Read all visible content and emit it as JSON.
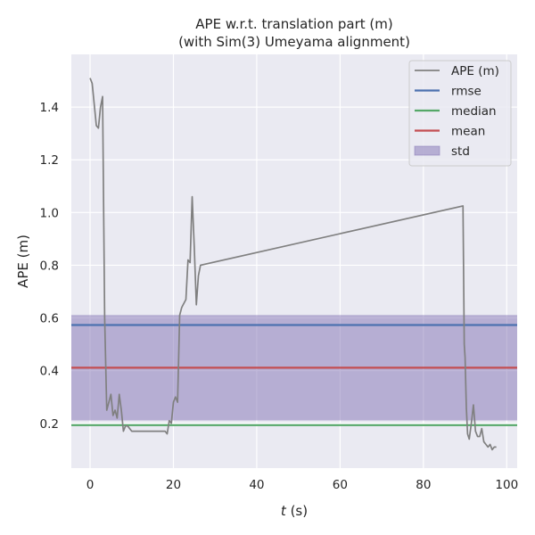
{
  "chart_data": {
    "type": "line",
    "title": "APE w.r.t. translation part (m)",
    "subtitle": "(with Sim(3) Umeyama alignment)",
    "xlabel_italic": "t",
    "xlabel_rest": " (s)",
    "ylabel": "APE (m)",
    "xlim": [
      -4.5,
      102.5
    ],
    "ylim": [
      0.03,
      1.6
    ],
    "xticks": [
      0,
      20,
      40,
      60,
      80,
      100
    ],
    "yticks": [
      0.2,
      0.4,
      0.6,
      0.8,
      1.0,
      1.2,
      1.4
    ],
    "ytick_labels": [
      "0.2",
      "0.4",
      "0.6",
      "0.8",
      "1.0",
      "1.2",
      "1.4"
    ],
    "grid": true,
    "legend_placement": "top-right",
    "series": [
      {
        "name": "APE (m)",
        "color": "#808080",
        "x": [
          0.0,
          0.5,
          1.5,
          2.0,
          2.5,
          3.0,
          3.5,
          4.0,
          4.5,
          5.0,
          5.5,
          6.0,
          6.5,
          7.0,
          7.5,
          8.0,
          8.5,
          9.0,
          10.0,
          12.0,
          15.0,
          18.0,
          18.5,
          19.0,
          19.5,
          20.0,
          20.5,
          21.0,
          21.5,
          22.0,
          23.0,
          23.5,
          24.0,
          24.5,
          25.0,
          25.5,
          26.0,
          26.5,
          89.5,
          89.8,
          90.0,
          90.3,
          90.6,
          91.0,
          91.5,
          92.0,
          92.5,
          93.0,
          93.5,
          94.0,
          94.5,
          95.0,
          95.5,
          96.0,
          96.5,
          97.0,
          97.5
        ],
        "y": [
          1.51,
          1.49,
          1.33,
          1.32,
          1.4,
          1.44,
          0.6,
          0.25,
          0.28,
          0.31,
          0.23,
          0.25,
          0.22,
          0.31,
          0.25,
          0.17,
          0.19,
          0.19,
          0.17,
          0.17,
          0.17,
          0.17,
          0.16,
          0.21,
          0.2,
          0.28,
          0.3,
          0.28,
          0.61,
          0.64,
          0.67,
          0.82,
          0.81,
          1.06,
          0.87,
          0.65,
          0.76,
          0.8,
          1.025,
          0.5,
          0.45,
          0.26,
          0.16,
          0.14,
          0.2,
          0.27,
          0.17,
          0.15,
          0.15,
          0.18,
          0.13,
          0.12,
          0.11,
          0.12,
          0.1,
          0.11,
          0.11
        ]
      }
    ],
    "stats": [
      {
        "name": "rmse",
        "value": 0.573,
        "color": "#4c72b0"
      },
      {
        "name": "median",
        "value": 0.193,
        "color": "#55a868"
      },
      {
        "name": "mean",
        "value": 0.411,
        "color": "#c44e52"
      }
    ],
    "std_band": {
      "name": "std",
      "low": 0.211,
      "high": 0.611,
      "color": "#8172b3"
    }
  }
}
